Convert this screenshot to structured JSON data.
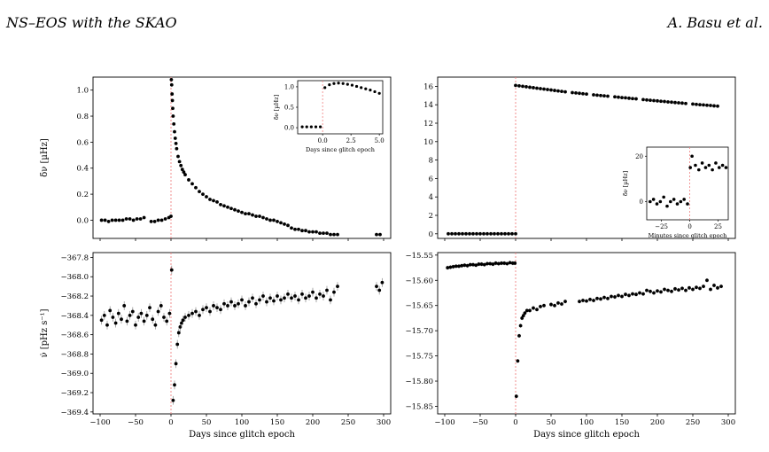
{
  "header": {
    "left": "NS–EOS with the SKAO",
    "right": "A. Basu et al."
  },
  "chart_data": [
    {
      "type": "scatter",
      "panel": "top-left",
      "title": "",
      "xlabel": "",
      "ylabel": "δν [µHz]",
      "xlim": [
        -110,
        310
      ],
      "ylim": [
        -0.14,
        1.1
      ],
      "yticks": [
        "0.0",
        "0.2",
        "0.4",
        "0.6",
        "0.8",
        "1.0"
      ],
      "xtick_values": [
        -100,
        -50,
        0,
        50,
        100,
        150,
        200,
        250,
        300
      ],
      "glitch_epoch_line": 0,
      "series": [
        {
          "x": [
            -98,
            -93,
            -88,
            -83,
            -78,
            -73,
            -68,
            -63,
            -58,
            -53,
            -48,
            -43,
            -38,
            -28,
            -23,
            -18,
            -13,
            -8,
            -3,
            0,
            0.5,
            1,
            1.5,
            2,
            2.5,
            3,
            4,
            5,
            6,
            7,
            8,
            10,
            12,
            14,
            16,
            18,
            20,
            25,
            30,
            35,
            40,
            45,
            50,
            55,
            60,
            65,
            70,
            75,
            80,
            85,
            90,
            95,
            100,
            105,
            110,
            115,
            120,
            125,
            130,
            135,
            140,
            145,
            150,
            155,
            160,
            165,
            170,
            175,
            180,
            185,
            190,
            195,
            200,
            205,
            210,
            215,
            220,
            225,
            230,
            235,
            290,
            295
          ],
          "y": [
            0.0,
            0.0,
            -0.01,
            0.0,
            0.0,
            0.0,
            0.0,
            0.01,
            0.01,
            0.0,
            0.01,
            0.01,
            0.02,
            -0.01,
            -0.01,
            0.0,
            0.0,
            0.01,
            0.02,
            0.03,
            1.08,
            1.04,
            0.97,
            0.92,
            0.86,
            0.8,
            0.74,
            0.68,
            0.63,
            0.59,
            0.55,
            0.49,
            0.45,
            0.42,
            0.39,
            0.37,
            0.35,
            0.31,
            0.28,
            0.25,
            0.22,
            0.2,
            0.18,
            0.16,
            0.15,
            0.14,
            0.12,
            0.11,
            0.1,
            0.09,
            0.08,
            0.07,
            0.06,
            0.05,
            0.05,
            0.04,
            0.03,
            0.03,
            0.02,
            0.01,
            0.0,
            0.0,
            -0.01,
            -0.02,
            -0.03,
            -0.04,
            -0.06,
            -0.07,
            -0.07,
            -0.08,
            -0.08,
            -0.09,
            -0.09,
            -0.09,
            -0.1,
            -0.1,
            -0.1,
            -0.11,
            -0.11,
            -0.11,
            -0.11,
            -0.11
          ]
        }
      ],
      "inset": {
        "xlabel": "Days since glitch epoch",
        "ylabel": "δν [µHz]",
        "xlim": [
          -2.2,
          5.3
        ],
        "ylim": [
          -0.15,
          1.15
        ],
        "xticks": [
          "0.0",
          "2.5",
          "5.0"
        ],
        "yticks": [
          "0.0",
          "0.5",
          "1.0"
        ],
        "x": [
          -1.8,
          -1.4,
          -1.0,
          -0.6,
          -0.2,
          0.2,
          0.6,
          1.0,
          1.4,
          1.8,
          2.2,
          2.6,
          3.0,
          3.4,
          3.8,
          4.2,
          4.6,
          5.0
        ],
        "y": [
          0.02,
          0.02,
          0.02,
          0.02,
          0.02,
          0.98,
          1.05,
          1.08,
          1.09,
          1.08,
          1.06,
          1.04,
          1.01,
          0.98,
          0.95,
          0.92,
          0.88,
          0.84
        ]
      }
    },
    {
      "type": "scatter",
      "panel": "top-right",
      "title": "",
      "xlabel": "",
      "ylabel": "",
      "xlim": [
        -110,
        310
      ],
      "ylim": [
        -0.5,
        17
      ],
      "yticks": [
        "0",
        "2",
        "4",
        "6",
        "8",
        "10",
        "12",
        "14",
        "16"
      ],
      "xtick_values": [
        -100,
        -50,
        0,
        50,
        100,
        150,
        200,
        250,
        300
      ],
      "glitch_epoch_line": 0,
      "series": [
        {
          "x": [
            -95,
            -90,
            -85,
            -80,
            -75,
            -70,
            -65,
            -60,
            -55,
            -50,
            -45,
            -40,
            -35,
            -30,
            -25,
            -20,
            -15,
            -10,
            -5,
            0,
            0,
            5,
            10,
            15,
            20,
            25,
            30,
            35,
            40,
            45,
            50,
            55,
            60,
            65,
            70,
            80,
            85,
            90,
            95,
            100,
            110,
            115,
            120,
            125,
            130,
            140,
            145,
            150,
            155,
            160,
            165,
            170,
            180,
            185,
            190,
            195,
            200,
            205,
            210,
            215,
            220,
            225,
            230,
            235,
            240,
            250,
            255,
            260,
            265,
            270,
            275,
            280,
            285
          ],
          "y": [
            0,
            0,
            0,
            0,
            0,
            0,
            0,
            0,
            0,
            0,
            0,
            0,
            0,
            0,
            0,
            0,
            0,
            0,
            0,
            0,
            16.1,
            16.05,
            16.0,
            15.95,
            15.9,
            15.85,
            15.8,
            15.75,
            15.7,
            15.65,
            15.6,
            15.55,
            15.5,
            15.45,
            15.4,
            15.32,
            15.28,
            15.24,
            15.2,
            15.16,
            15.08,
            15.04,
            15.0,
            14.97,
            14.93,
            14.86,
            14.82,
            14.78,
            14.75,
            14.71,
            14.67,
            14.64,
            14.56,
            14.52,
            14.49,
            14.45,
            14.42,
            14.38,
            14.35,
            14.31,
            14.28,
            14.24,
            14.21,
            14.18,
            14.14,
            14.08,
            14.04,
            14.01,
            13.98,
            13.95,
            13.92,
            13.88,
            13.85
          ]
        }
      ],
      "inset": {
        "xlabel": "Minutes since glitch epoch",
        "ylabel": "δν [µHz]",
        "xlim": [
          -38,
          34
        ],
        "ylim": [
          -8,
          24
        ],
        "xticks": [
          "−25",
          "0",
          "25"
        ],
        "yticks": [
          "0",
          "20"
        ],
        "x": [
          -35,
          -32,
          -29,
          -26,
          -23,
          -20,
          -17,
          -14,
          -11,
          -8,
          -5,
          -2,
          0.5,
          2,
          5,
          8,
          11,
          14,
          17,
          20,
          23,
          26,
          29,
          32
        ],
        "y": [
          0,
          1,
          -1,
          0,
          2,
          -2,
          0,
          1,
          -1,
          0,
          1,
          -1,
          15,
          20,
          16,
          14,
          17,
          15,
          16,
          14,
          17,
          15,
          16,
          15
        ]
      }
    },
    {
      "type": "scatter",
      "panel": "bottom-left",
      "title": "",
      "xlabel": "Days since glitch epoch",
      "ylabel": "ν̇ [pHz s⁻¹]",
      "xlim": [
        -110,
        310
      ],
      "ylim": [
        -369.42,
        -367.75
      ],
      "yticks": [
        "−367.8",
        "−368.0",
        "−368.2",
        "−368.4",
        "−368.6",
        "−368.8",
        "−369.0",
        "−369.2",
        "−369.4"
      ],
      "xticks": [
        "−100",
        "−50",
        "0",
        "50",
        "100",
        "150",
        "200",
        "250",
        "300"
      ],
      "glitch_epoch_line": 0,
      "series": [
        {
          "x": [
            -98,
            -94,
            -90,
            -86,
            -82,
            -78,
            -74,
            -70,
            -66,
            -62,
            -58,
            -54,
            -50,
            -46,
            -42,
            -38,
            -34,
            -30,
            -26,
            -22,
            -18,
            -14,
            -10,
            -6,
            -2,
            1,
            3,
            5,
            7,
            9,
            11,
            13,
            15,
            17,
            20,
            25,
            30,
            35,
            40,
            45,
            50,
            55,
            60,
            65,
            70,
            75,
            80,
            85,
            90,
            95,
            100,
            105,
            110,
            115,
            120,
            125,
            130,
            135,
            140,
            145,
            150,
            155,
            160,
            165,
            170,
            175,
            180,
            185,
            190,
            195,
            200,
            205,
            210,
            215,
            220,
            225,
            230,
            235,
            290,
            294,
            298
          ],
          "y": [
            -368.45,
            -368.4,
            -368.5,
            -368.35,
            -368.42,
            -368.48,
            -368.38,
            -368.44,
            -368.3,
            -368.46,
            -368.4,
            -368.36,
            -368.5,
            -368.42,
            -368.38,
            -368.46,
            -368.4,
            -368.32,
            -368.44,
            -368.5,
            -368.36,
            -368.3,
            -368.42,
            -368.46,
            -368.38,
            -367.93,
            -369.28,
            -369.12,
            -368.9,
            -368.7,
            -368.58,
            -368.52,
            -368.48,
            -368.45,
            -368.42,
            -368.4,
            -368.38,
            -368.36,
            -368.4,
            -368.34,
            -368.32,
            -368.36,
            -368.3,
            -368.32,
            -368.34,
            -368.28,
            -368.3,
            -368.26,
            -368.3,
            -368.28,
            -368.24,
            -368.3,
            -368.26,
            -368.22,
            -368.28,
            -368.24,
            -368.2,
            -368.26,
            -368.22,
            -368.25,
            -368.2,
            -368.24,
            -368.22,
            -368.18,
            -368.22,
            -368.2,
            -368.24,
            -368.18,
            -368.22,
            -368.2,
            -368.16,
            -368.22,
            -368.18,
            -368.2,
            -368.14,
            -368.24,
            -368.16,
            -368.1,
            -368.1,
            -368.14,
            -368.06
          ]
        }
      ]
    },
    {
      "type": "scatter",
      "panel": "bottom-right",
      "title": "",
      "xlabel": "Days since glitch epoch",
      "ylabel": "",
      "xlim": [
        -110,
        310
      ],
      "ylim": [
        -15.865,
        -15.545
      ],
      "yticks": [
        "−15.55",
        "−15.60",
        "−15.65",
        "−15.70",
        "−15.75",
        "−15.80",
        "−15.85"
      ],
      "xticks": [
        "−100",
        "−50",
        "0",
        "50",
        "100",
        "150",
        "200",
        "250",
        "300"
      ],
      "glitch_epoch_line": 0,
      "series": [
        {
          "x": [
            -96,
            -92,
            -88,
            -84,
            -80,
            -76,
            -72,
            -68,
            -64,
            -60,
            -56,
            -52,
            -48,
            -44,
            -40,
            -36,
            -32,
            -28,
            -24,
            -20,
            -16,
            -12,
            -8,
            -4,
            -1,
            1,
            3,
            5,
            7,
            9,
            11,
            13,
            16,
            20,
            25,
            30,
            35,
            40,
            50,
            55,
            60,
            65,
            70,
            90,
            95,
            100,
            105,
            110,
            115,
            120,
            125,
            130,
            135,
            140,
            145,
            150,
            155,
            160,
            165,
            170,
            175,
            180,
            185,
            190,
            195,
            200,
            205,
            210,
            215,
            220,
            225,
            230,
            235,
            240,
            245,
            250,
            255,
            260,
            265,
            270,
            275,
            280,
            285,
            290
          ],
          "y": [
            -15.575,
            -15.574,
            -15.573,
            -15.572,
            -15.572,
            -15.571,
            -15.57,
            -15.571,
            -15.569,
            -15.569,
            -15.57,
            -15.568,
            -15.568,
            -15.569,
            -15.567,
            -15.567,
            -15.568,
            -15.566,
            -15.567,
            -15.566,
            -15.566,
            -15.567,
            -15.565,
            -15.566,
            -15.566,
            -15.83,
            -15.76,
            -15.71,
            -15.69,
            -15.675,
            -15.67,
            -15.665,
            -15.66,
            -15.66,
            -15.655,
            -15.658,
            -15.652,
            -15.65,
            -15.648,
            -15.65,
            -15.645,
            -15.647,
            -15.642,
            -15.642,
            -15.64,
            -15.641,
            -15.638,
            -15.64,
            -15.636,
            -15.637,
            -15.634,
            -15.636,
            -15.632,
            -15.633,
            -15.63,
            -15.632,
            -15.628,
            -15.63,
            -15.627,
            -15.628,
            -15.625,
            -15.627,
            -15.62,
            -15.622,
            -15.625,
            -15.621,
            -15.623,
            -15.618,
            -15.62,
            -15.622,
            -15.617,
            -15.619,
            -15.616,
            -15.62,
            -15.615,
            -15.618,
            -15.614,
            -15.616,
            -15.612,
            -15.6,
            -15.618,
            -15.61,
            -15.615,
            -15.612
          ]
        }
      ]
    }
  ]
}
